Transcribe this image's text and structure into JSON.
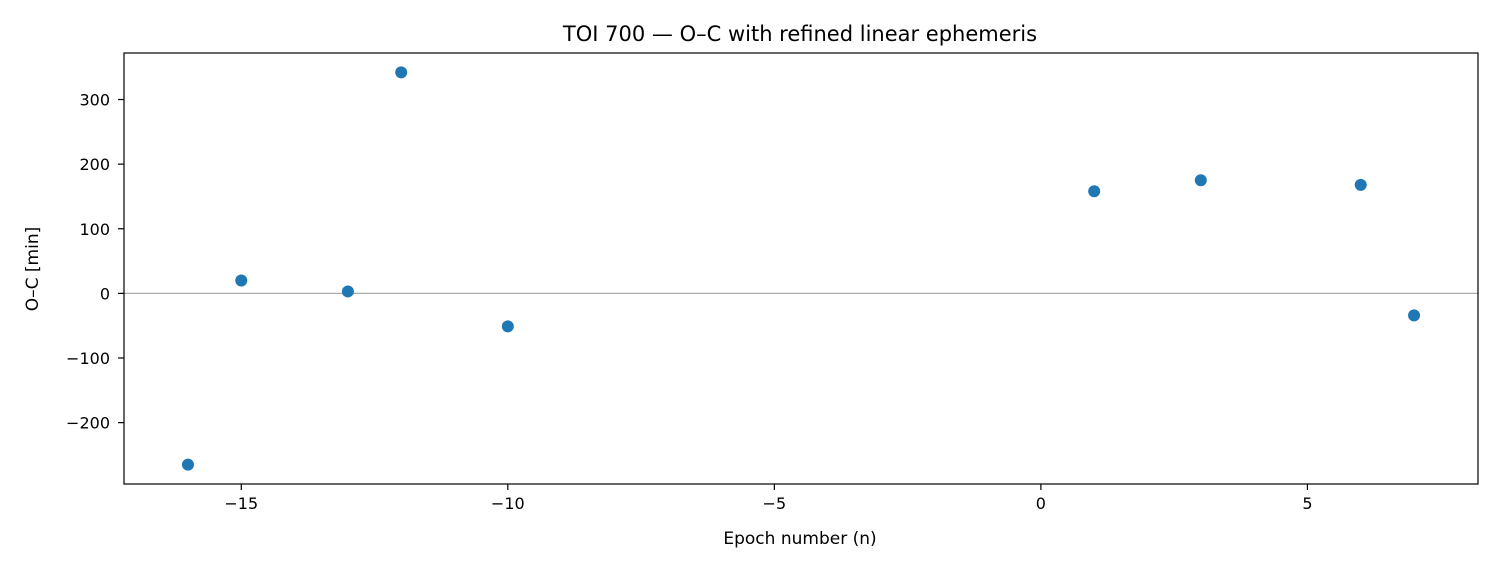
{
  "chart_data": {
    "type": "scatter",
    "title": "TOI 700 — O–C with refined linear ephemeris",
    "xlabel": "Epoch number (n)",
    "ylabel": "O–C [min]",
    "xlim": [
      -17.2,
      8.2
    ],
    "ylim": [
      -295,
      372
    ],
    "xticks": [
      -15,
      -10,
      -5,
      0,
      5
    ],
    "xtick_labels": [
      "−15",
      "−10",
      "−5",
      "0",
      "5"
    ],
    "yticks": [
      -200,
      -100,
      0,
      100,
      200,
      300
    ],
    "ytick_labels": [
      "−200",
      "−100",
      "0",
      "100",
      "200",
      "300"
    ],
    "reference_line_y": 0,
    "grid": false,
    "legend": "none",
    "series": [
      {
        "x": [
          -16,
          -15,
          -13,
          -12,
          -10,
          1,
          3,
          6,
          7
        ],
        "y": [
          -265,
          20,
          3,
          342,
          -51,
          158,
          175,
          168,
          -34
        ]
      }
    ],
    "colors": {
      "points": "#1f77b4",
      "zero_line": "#aaaaaa",
      "axes": "#000000"
    }
  }
}
